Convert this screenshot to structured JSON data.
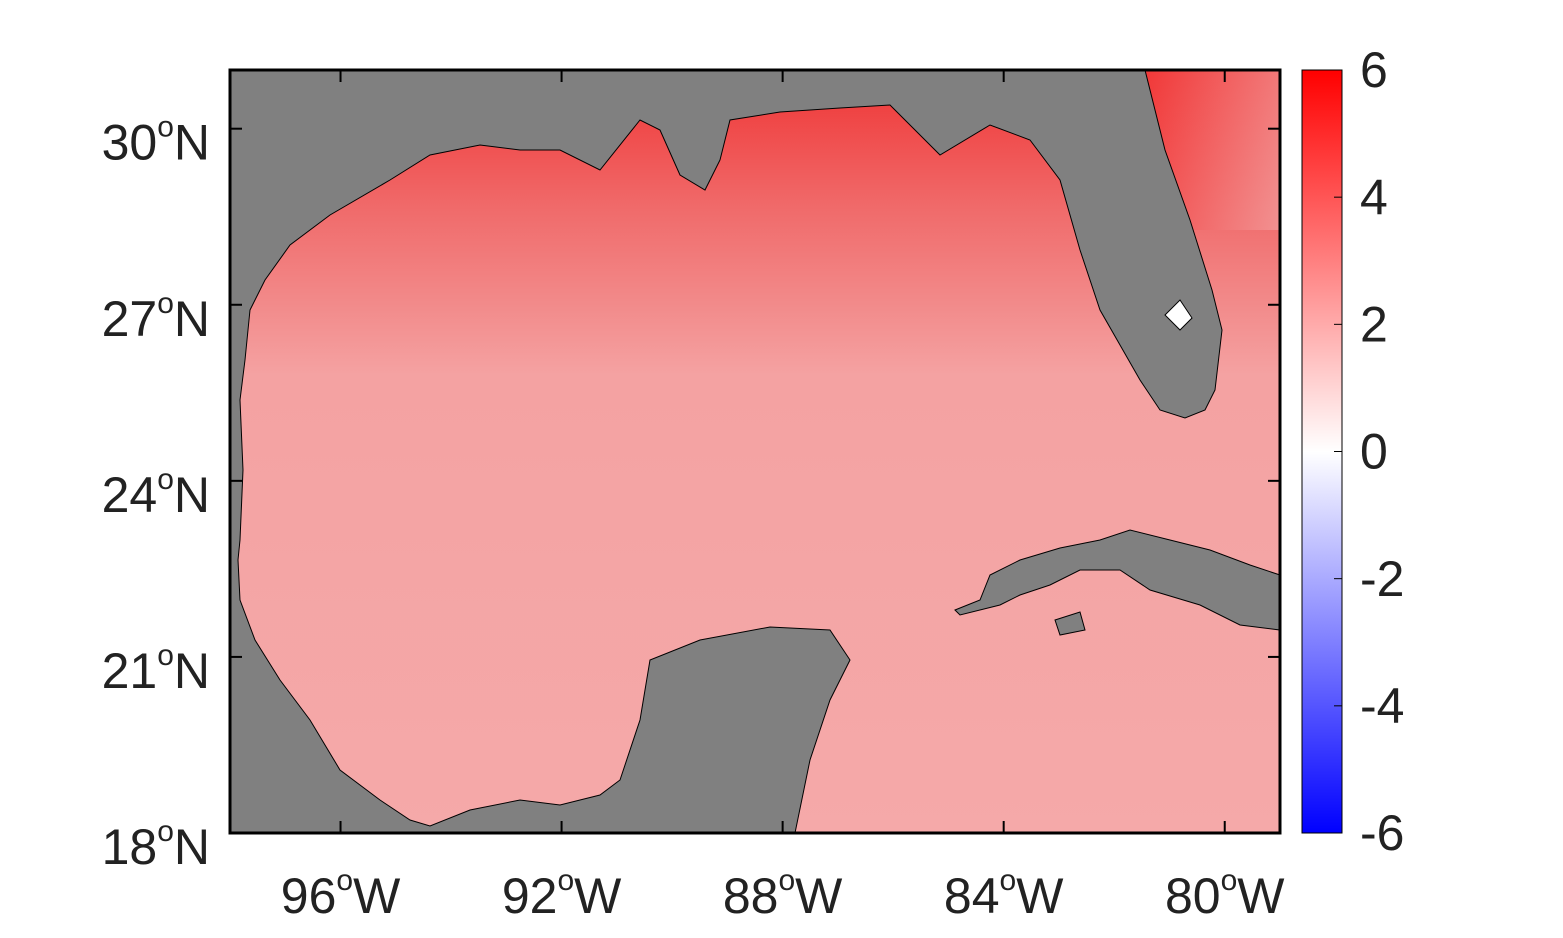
{
  "chart_data": {
    "type": "map",
    "xlim": [
      -98,
      -79
    ],
    "ylim": [
      18,
      31
    ],
    "xticks": [
      {
        "value": -96,
        "label": "96",
        "sup": "o",
        "suffix": "W"
      },
      {
        "value": -92,
        "label": "92",
        "sup": "o",
        "suffix": "W"
      },
      {
        "value": -88,
        "label": "88",
        "sup": "o",
        "suffix": "W"
      },
      {
        "value": -84,
        "label": "84",
        "sup": "o",
        "suffix": "W"
      },
      {
        "value": -80,
        "label": "80",
        "sup": "o",
        "suffix": "W"
      }
    ],
    "yticks": [
      {
        "value": 18,
        "label": "18",
        "sup": "o",
        "suffix": "N"
      },
      {
        "value": 21,
        "label": "21",
        "sup": "o",
        "suffix": "N"
      },
      {
        "value": 24,
        "label": "24",
        "sup": "o",
        "suffix": "N"
      },
      {
        "value": 27,
        "label": "27",
        "sup": "o",
        "suffix": "N"
      },
      {
        "value": 30,
        "label": "30",
        "sup": "o",
        "suffix": "N"
      }
    ],
    "colorbar": {
      "lim": [
        -6,
        6
      ],
      "ticks": [
        -6,
        -4,
        -2,
        0,
        2,
        4,
        6
      ],
      "colors": [
        "#0000ff",
        "#ffffff",
        "#ff0000"
      ]
    },
    "land_color": "#808080"
  }
}
